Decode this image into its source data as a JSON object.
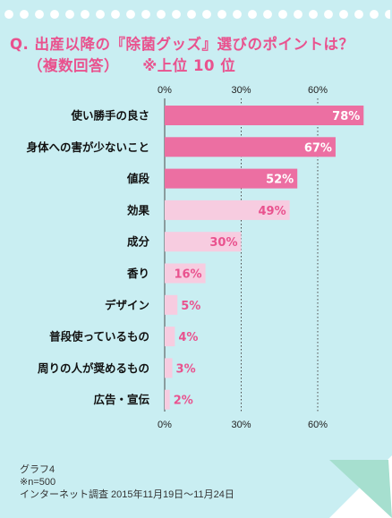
{
  "title": {
    "line1": "Q. 出産以降の『除菌グッズ』選びのポイントは？",
    "line2": "（複数回答）",
    "line2_note": "※上位 10 位"
  },
  "colors": {
    "background": "#c9eef2",
    "title": "#e9528e",
    "bar_top": "#ec6fa2",
    "bar_other": "#f7cce0",
    "value_top": "#ffffff",
    "value_other": "#e9528e",
    "grid": "#4a4a4a"
  },
  "chart_data": {
    "type": "bar",
    "orientation": "horizontal",
    "categories": [
      "使い勝手の良さ",
      "身体への害が少ないこと",
      "値段",
      "効果",
      "成分",
      "香り",
      "デザイン",
      "普段使っているもの",
      "周りの人が奨めるもの",
      "広告・宣伝"
    ],
    "values": [
      78,
      67,
      52,
      49,
      30,
      16,
      5,
      4,
      3,
      2
    ],
    "value_labels": [
      "78%",
      "67%",
      "52%",
      "49%",
      "30%",
      "16%",
      "5%",
      "4%",
      "3%",
      "2%"
    ],
    "highlighted_top": 3,
    "xlim": [
      0,
      80
    ],
    "ticks": [
      0,
      30,
      60
    ],
    "tick_labels": [
      "0%",
      "30%",
      "60%"
    ],
    "grid": "dotted vertical at ticks",
    "axis_labels_top_and_bottom": true
  },
  "footer": {
    "line1": "グラフ4",
    "line2": "※n=500",
    "line3": "インターネット調査  2015年11月19日～11月24日"
  }
}
